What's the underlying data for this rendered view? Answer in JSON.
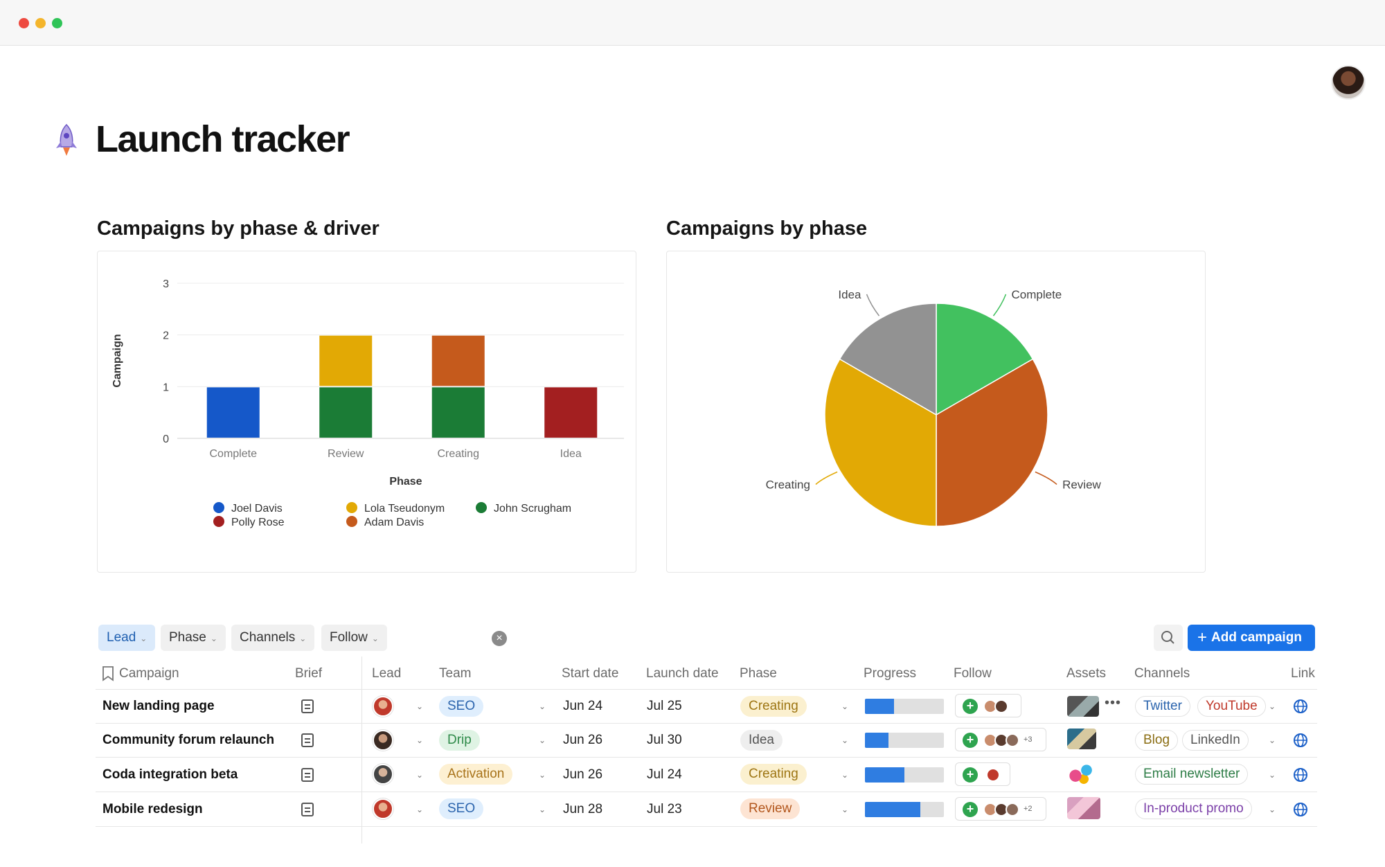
{
  "window": {
    "controls": [
      "close",
      "minimize",
      "maximize"
    ]
  },
  "page": {
    "title": "Launch tracker",
    "icon": "rocket-icon"
  },
  "bar_chart_heading": "Campaigns by phase & driver",
  "pie_chart_heading": "Campaigns by phase",
  "chart_data": [
    {
      "type": "bar",
      "stacked": true,
      "title": "Campaigns by phase & driver",
      "xlabel": "Phase",
      "ylabel": "Campaign",
      "categories": [
        "Complete",
        "Review",
        "Creating",
        "Idea"
      ],
      "ylim": [
        0,
        3
      ],
      "yticks": [
        "0",
        "1",
        "2",
        "3"
      ],
      "grid": true,
      "legend_position": "bottom",
      "series": [
        {
          "name": "Joel Davis",
          "color": "#1558c9",
          "values": [
            1,
            0,
            0,
            0
          ]
        },
        {
          "name": "Polly Rose",
          "color": "#a31f20",
          "values": [
            0,
            0,
            0,
            1
          ]
        },
        {
          "name": "Lola Tseudonym",
          "color": "#e2a905",
          "values": [
            0,
            1,
            0,
            0
          ]
        },
        {
          "name": "Adam Davis",
          "color": "#c55a1c",
          "values": [
            0,
            0,
            1,
            0
          ]
        },
        {
          "name": "John Scrugham",
          "color": "#1b7c36",
          "values": [
            0,
            1,
            1,
            0
          ]
        }
      ]
    },
    {
      "type": "pie",
      "title": "Campaigns by phase",
      "labels": [
        "Complete",
        "Review",
        "Creating",
        "Idea"
      ],
      "values": [
        1,
        2,
        2,
        1
      ],
      "colors": [
        "#42c15f",
        "#c55a1c",
        "#e2a905",
        "#929292"
      ]
    }
  ],
  "filters": [
    {
      "label": "Lead",
      "active": true
    },
    {
      "label": "Phase",
      "active": false
    },
    {
      "label": "Channels",
      "active": false
    },
    {
      "label": "Follow",
      "active": false
    }
  ],
  "toolbar": {
    "add_label": "Add campaign"
  },
  "table": {
    "columns": [
      "Campaign",
      "Brief",
      "Lead",
      "Team",
      "Start date",
      "Launch date",
      "Phase",
      "Progress",
      "Follow",
      "Assets",
      "Channels",
      "Link"
    ],
    "rows": [
      {
        "campaign": "New landing page",
        "team": "SEO",
        "start": "Jun 24",
        "launch": "Jul 25",
        "phase": "Creating",
        "progress": 0.37,
        "follow_more": "",
        "channels": [
          "Twitter",
          "YouTube"
        ]
      },
      {
        "campaign": "Community forum relaunch",
        "team": "Drip",
        "start": "Jun 26",
        "launch": "Jul 30",
        "phase": "Idea",
        "progress": 0.3,
        "follow_more": "+3",
        "channels": [
          "Blog",
          "LinkedIn"
        ]
      },
      {
        "campaign": "Coda integration beta",
        "team": "Activation",
        "start": "Jun 26",
        "launch": "Jul 24",
        "phase": "Creating",
        "progress": 0.5,
        "follow_more": "",
        "channels": [
          "Email newsletter"
        ]
      },
      {
        "campaign": "Mobile redesign",
        "team": "SEO",
        "start": "Jun 28",
        "launch": "Jul 23",
        "phase": "Review",
        "progress": 0.7,
        "follow_more": "+2",
        "channels": [
          "In-product promo"
        ]
      }
    ]
  }
}
